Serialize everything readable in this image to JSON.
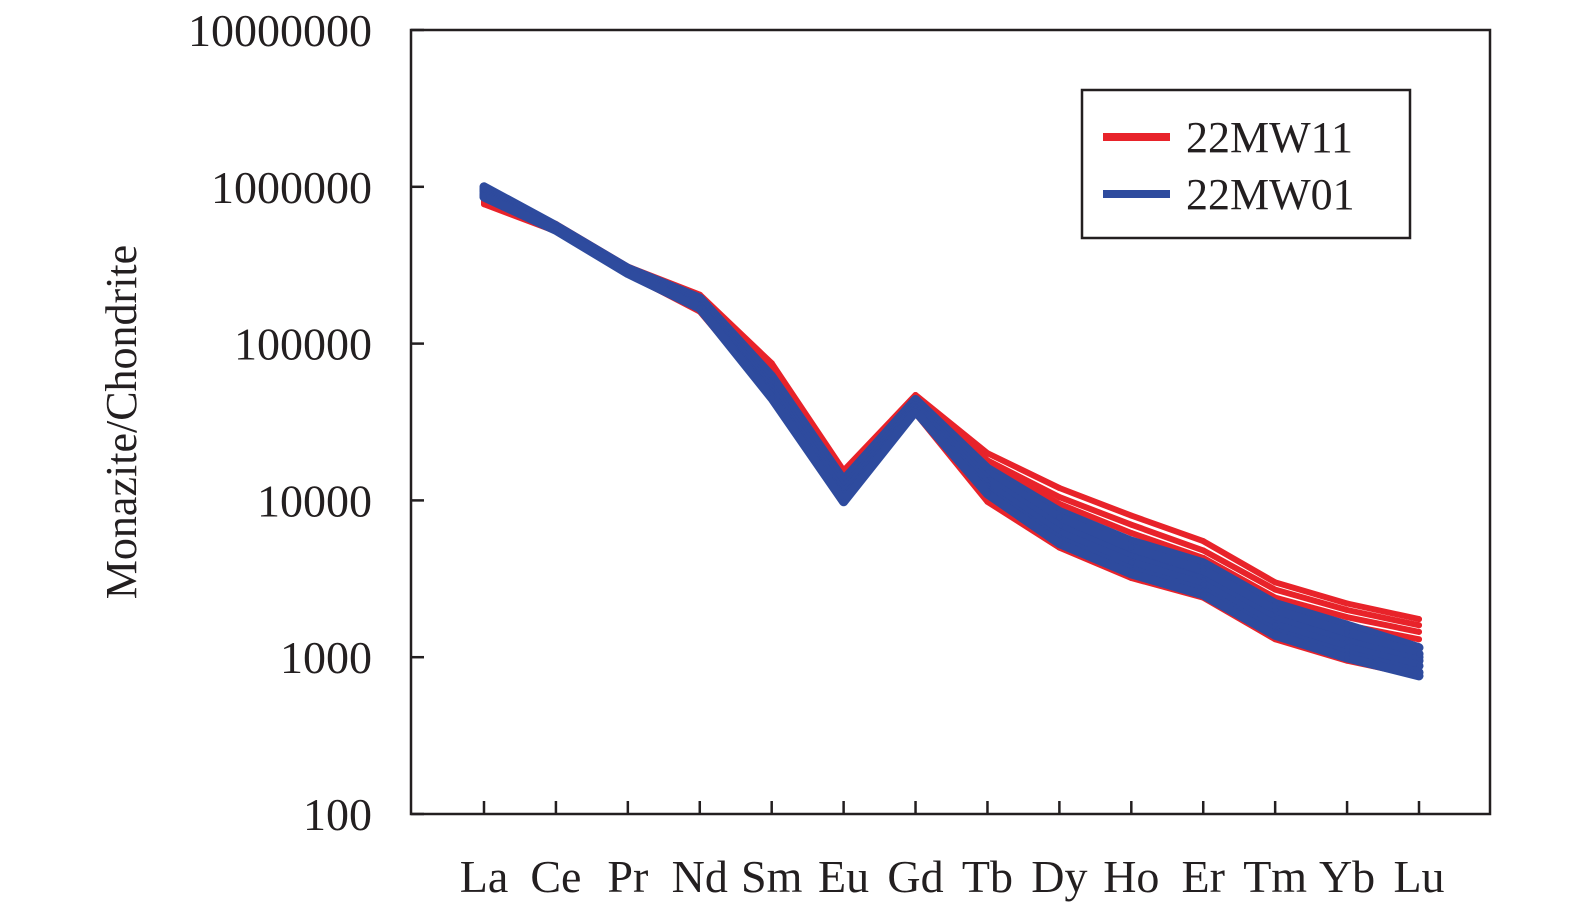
{
  "chart_data": {
    "type": "line",
    "title": "",
    "xlabel": "",
    "ylabel": "Monazite/Chondrite",
    "y_scale": "log",
    "ylim": [
      100,
      10000000
    ],
    "y_ticks": [
      100,
      1000,
      10000,
      100000,
      1000000,
      10000000
    ],
    "y_tick_labels": [
      "100",
      "1000",
      "10000",
      "100000",
      "1000000",
      "10000000"
    ],
    "grid": false,
    "legend_position": "top-right",
    "categories": [
      "La",
      "Ce",
      "Pr",
      "Nd",
      "Sm",
      "Eu",
      "Gd",
      "Tb",
      "Dy",
      "Ho",
      "Er",
      "Tm",
      "Yb",
      "Lu"
    ],
    "series": [
      {
        "name": "22MW11",
        "color": "#e8232a",
        "role": "legend",
        "values": [
          850000,
          560000,
          300000,
          190000,
          62000,
          14000,
          45000,
          15000,
          8000,
          5000,
          3600,
          2000,
          1550,
          1150
        ]
      },
      {
        "group": "22MW11",
        "color": "#e8232a",
        "values": [
          900000,
          580000,
          310000,
          205000,
          75000,
          15500,
          47000,
          20000,
          12000,
          8000,
          5500,
          3000,
          2200,
          1750
        ]
      },
      {
        "group": "22MW11",
        "color": "#e8232a",
        "values": [
          870000,
          570000,
          305000,
          200000,
          70000,
          15000,
          46000,
          18000,
          10500,
          7000,
          4800,
          2700,
          2000,
          1600
        ]
      },
      {
        "group": "22MW11",
        "color": "#e8232a",
        "values": [
          840000,
          555000,
          298000,
          192000,
          65000,
          14500,
          45000,
          17000,
          9500,
          6200,
          4300,
          2400,
          1800,
          1450
        ]
      },
      {
        "group": "22MW11",
        "color": "#e8232a",
        "values": [
          820000,
          545000,
          292000,
          185000,
          58000,
          14000,
          44000,
          15500,
          8500,
          5500,
          3800,
          2100,
          1600,
          1300
        ]
      },
      {
        "group": "22MW11",
        "color": "#e8232a",
        "values": [
          800000,
          535000,
          285000,
          178000,
          52000,
          13000,
          42000,
          13000,
          7000,
          4500,
          3200,
          1750,
          1300,
          1050
        ]
      },
      {
        "group": "22MW11",
        "color": "#e8232a",
        "values": [
          780000,
          525000,
          280000,
          165000,
          48000,
          12000,
          38000,
          10500,
          5500,
          3500,
          2600,
          1400,
          1000,
          800
        ]
      },
      {
        "group": "22MW11",
        "color": "#e8232a",
        "values": [
          775000,
          520000,
          278000,
          160000,
          46000,
          11500,
          36000,
          9800,
          5000,
          3200,
          2400,
          1300,
          950,
          760
        ]
      },
      {
        "name": "22MW01",
        "color": "#2e4b9e",
        "role": "legend",
        "values": [
          950000,
          550000,
          295000,
          185000,
          55000,
          12000,
          42000,
          14000,
          7000,
          4500,
          3300,
          1850,
          1350,
          1000
        ]
      },
      {
        "group": "22MW01",
        "color": "#2e4b9e",
        "values": [
          1000000,
          565000,
          302000,
          195000,
          62000,
          13500,
          44000,
          16000,
          8500,
          5500,
          4000,
          2200,
          1600,
          1150
        ]
      },
      {
        "group": "22MW01",
        "color": "#2e4b9e",
        "values": [
          970000,
          558000,
          298000,
          190000,
          58000,
          12800,
          43000,
          15000,
          7800,
          5000,
          3600,
          2000,
          1450,
          1050
        ]
      },
      {
        "group": "22MW01",
        "color": "#2e4b9e",
        "values": [
          930000,
          548000,
          292000,
          183000,
          53000,
          11800,
          41000,
          13500,
          6800,
          4300,
          3100,
          1750,
          1250,
          950
        ]
      },
      {
        "group": "22MW01",
        "color": "#2e4b9e",
        "values": [
          900000,
          540000,
          288000,
          178000,
          50000,
          11000,
          40000,
          12500,
          6200,
          4000,
          2900,
          1600,
          1150,
          880
        ]
      },
      {
        "group": "22MW01",
        "color": "#2e4b9e",
        "values": [
          880000,
          532000,
          284000,
          172000,
          47000,
          10200,
          38500,
          11500,
          5600,
          3600,
          2650,
          1450,
          1050,
          800
        ]
      },
      {
        "group": "22MW01",
        "color": "#2e4b9e",
        "values": [
          860000,
          528000,
          280000,
          168000,
          45000,
          9800,
          37000,
          11000,
          5300,
          3400,
          2500,
          1380,
          990,
          760
        ]
      }
    ],
    "legend": [
      {
        "label": "22MW11",
        "color": "#e8232a"
      },
      {
        "label": "22MW01",
        "color": "#2e4b9e"
      }
    ]
  }
}
